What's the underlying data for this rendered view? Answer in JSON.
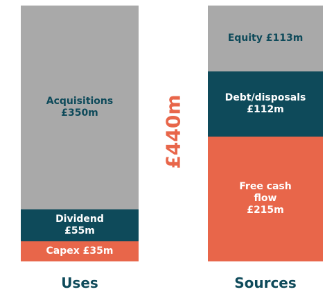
{
  "chart_data": {
    "type": "stacked_bar",
    "categories": [
      "Uses",
      "Sources"
    ],
    "annotation": "£440m",
    "series": [
      {
        "color": "#e8664a",
        "values": [
          35,
          215
        ],
        "value_labels": [
          "Capex £35m",
          "Free cash\nflow\n£215m"
        ]
      },
      {
        "color": "#0e4a5a",
        "values": [
          55,
          112
        ],
        "value_labels": [
          "Dividend\n£55m",
          "Debt/disposals\n£112m"
        ]
      },
      {
        "color": "#a9a9a9",
        "values": [
          350,
          113
        ],
        "value_labels": [
          "Acquisitions\n£350m",
          "Equity £113m"
        ]
      }
    ]
  }
}
